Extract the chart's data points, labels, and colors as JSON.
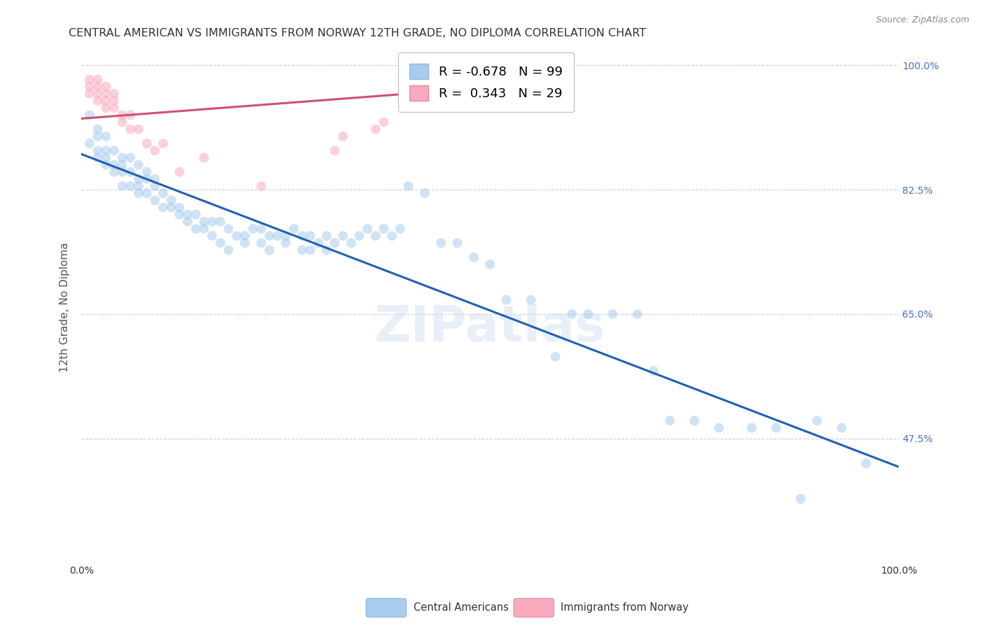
{
  "title": "CENTRAL AMERICAN VS IMMIGRANTS FROM NORWAY 12TH GRADE, NO DIPLOMA CORRELATION CHART",
  "source": "Source: ZipAtlas.com",
  "ylabel": "12th Grade, No Diploma",
  "watermark": "ZIPatlas",
  "xlim": [
    0,
    1
  ],
  "ylim": [
    0.3,
    1.02
  ],
  "xticks": [
    0,
    0.25,
    0.5,
    0.75,
    1.0
  ],
  "yticks": [
    0.475,
    0.65,
    0.825,
    1.0
  ],
  "xticklabels": [
    "0.0%",
    "",
    "",
    "",
    "100.0%"
  ],
  "yticklabels_right": [
    "47.5%",
    "65.0%",
    "82.5%",
    "100.0%"
  ],
  "legend_blue_label": "Central Americans",
  "legend_pink_label": "Immigrants from Norway",
  "R_blue": -0.678,
  "N_blue": 99,
  "R_pink": 0.343,
  "N_pink": 29,
  "blue_scatter_x": [
    0.01,
    0.01,
    0.02,
    0.02,
    0.02,
    0.02,
    0.03,
    0.03,
    0.03,
    0.03,
    0.04,
    0.04,
    0.04,
    0.05,
    0.05,
    0.05,
    0.05,
    0.06,
    0.06,
    0.06,
    0.07,
    0.07,
    0.07,
    0.07,
    0.08,
    0.08,
    0.08,
    0.09,
    0.09,
    0.09,
    0.1,
    0.1,
    0.11,
    0.11,
    0.12,
    0.12,
    0.13,
    0.13,
    0.14,
    0.14,
    0.15,
    0.15,
    0.16,
    0.16,
    0.17,
    0.17,
    0.18,
    0.18,
    0.19,
    0.2,
    0.2,
    0.21,
    0.22,
    0.22,
    0.23,
    0.23,
    0.24,
    0.25,
    0.25,
    0.26,
    0.27,
    0.27,
    0.28,
    0.28,
    0.29,
    0.3,
    0.3,
    0.31,
    0.32,
    0.33,
    0.34,
    0.35,
    0.36,
    0.37,
    0.38,
    0.39,
    0.4,
    0.42,
    0.44,
    0.46,
    0.48,
    0.5,
    0.52,
    0.55,
    0.58,
    0.6,
    0.62,
    0.65,
    0.68,
    0.7,
    0.72,
    0.75,
    0.78,
    0.82,
    0.85,
    0.88,
    0.9,
    0.93,
    0.96
  ],
  "blue_scatter_y": [
    0.89,
    0.93,
    0.88,
    0.91,
    0.87,
    0.9,
    0.86,
    0.9,
    0.88,
    0.87,
    0.86,
    0.88,
    0.85,
    0.87,
    0.85,
    0.83,
    0.86,
    0.85,
    0.83,
    0.87,
    0.84,
    0.82,
    0.86,
    0.83,
    0.84,
    0.82,
    0.85,
    0.83,
    0.81,
    0.84,
    0.82,
    0.8,
    0.81,
    0.8,
    0.8,
    0.79,
    0.79,
    0.78,
    0.79,
    0.77,
    0.78,
    0.77,
    0.78,
    0.76,
    0.78,
    0.75,
    0.77,
    0.74,
    0.76,
    0.76,
    0.75,
    0.77,
    0.77,
    0.75,
    0.76,
    0.74,
    0.76,
    0.76,
    0.75,
    0.77,
    0.76,
    0.74,
    0.76,
    0.74,
    0.75,
    0.76,
    0.74,
    0.75,
    0.76,
    0.75,
    0.76,
    0.77,
    0.76,
    0.77,
    0.76,
    0.77,
    0.83,
    0.82,
    0.75,
    0.75,
    0.73,
    0.72,
    0.67,
    0.67,
    0.59,
    0.65,
    0.65,
    0.65,
    0.65,
    0.57,
    0.5,
    0.5,
    0.49,
    0.49,
    0.49,
    0.39,
    0.5,
    0.49,
    0.44
  ],
  "pink_scatter_x": [
    0.01,
    0.01,
    0.01,
    0.02,
    0.02,
    0.02,
    0.02,
    0.03,
    0.03,
    0.03,
    0.03,
    0.04,
    0.04,
    0.04,
    0.05,
    0.05,
    0.06,
    0.06,
    0.07,
    0.08,
    0.09,
    0.1,
    0.12,
    0.15,
    0.22,
    0.31,
    0.32,
    0.36,
    0.37
  ],
  "pink_scatter_y": [
    0.97,
    0.98,
    0.96,
    0.97,
    0.96,
    0.95,
    0.98,
    0.96,
    0.97,
    0.95,
    0.94,
    0.96,
    0.94,
    0.95,
    0.93,
    0.92,
    0.93,
    0.91,
    0.91,
    0.89,
    0.88,
    0.89,
    0.85,
    0.87,
    0.83,
    0.88,
    0.9,
    0.91,
    0.92
  ],
  "blue_line_x": [
    0.0,
    1.0
  ],
  "blue_line_y": [
    0.875,
    0.435
  ],
  "pink_line_x": [
    0.0,
    0.4
  ],
  "pink_line_y": [
    0.925,
    0.96
  ],
  "blue_color": "#A8CCEE",
  "blue_line_color": "#2060B0",
  "pink_color": "#F9AABF",
  "pink_line_color": "#D05070",
  "background_color": "#FFFFFF",
  "grid_color": "#CCCCCC",
  "title_fontsize": 11.5,
  "axis_label_fontsize": 11,
  "tick_fontsize": 10,
  "scatter_size": 100,
  "scatter_alpha": 0.55
}
